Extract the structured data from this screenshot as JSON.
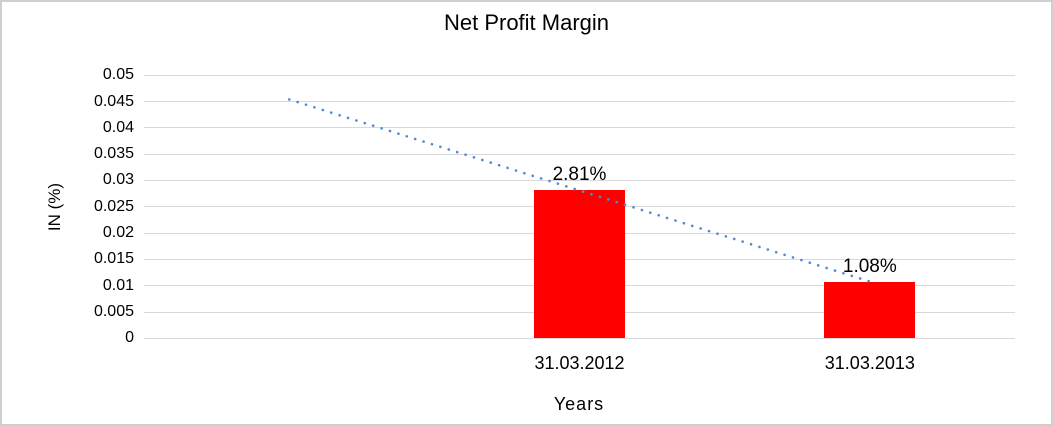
{
  "window": {
    "background": "#FFFFFF",
    "border_color": "#CFCFCF"
  },
  "chart_data": {
    "type": "bar",
    "title": "Net Profit Margin",
    "xlabel": "Years",
    "ylabel": "IN (%)",
    "categories": [
      "31.03.2012",
      "31.03.2013"
    ],
    "values": [
      0.0281,
      0.0108
    ],
    "data_labels": [
      "2.81%",
      "1.08%"
    ],
    "ylim": [
      0,
      0.05
    ],
    "ytick_step": 0.005,
    "ytick_labels": [
      "0",
      "0.005",
      "0.01",
      "0.015",
      "0.02",
      "0.025",
      "0.03",
      "0.035",
      "0.04",
      "0.045",
      "0.05"
    ],
    "grid": true,
    "grid_color": "#D9D9D9",
    "bar_color": "#FF0000",
    "label_color": "#000000",
    "legend": "none",
    "n_slots": 3,
    "category_slot_start": 1,
    "trendline": {
      "type": "linear",
      "line_style": "dotted",
      "color": "#4F8BD5",
      "from": {
        "slot": 0,
        "value": 0.0454
      },
      "to": {
        "slot": 2,
        "value": 0.0108
      }
    }
  }
}
